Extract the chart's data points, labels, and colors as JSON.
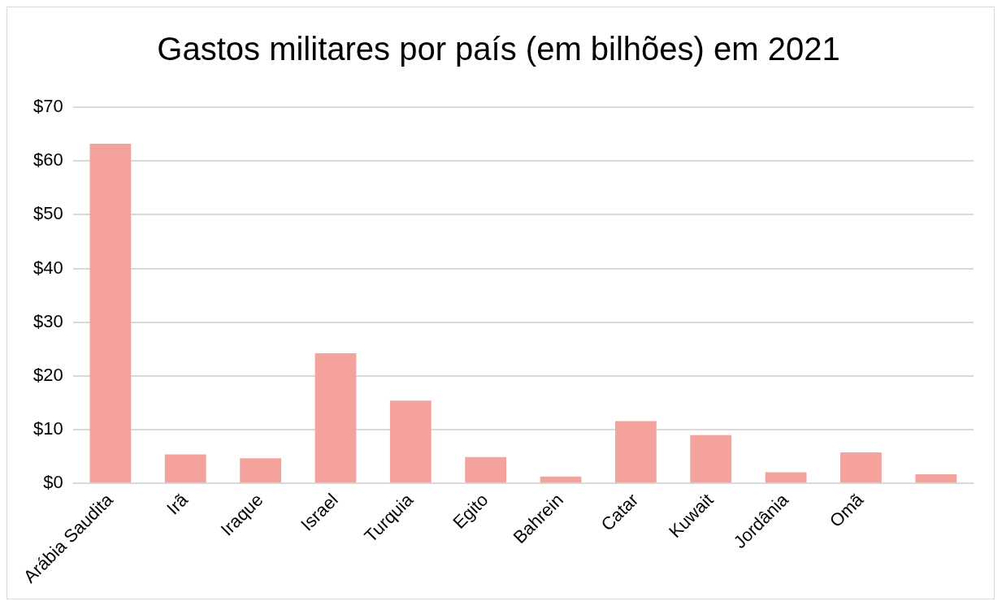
{
  "chart_data": {
    "type": "bar",
    "title": "Gastos militares por país (em bilhões) em 2021",
    "categories": [
      "Arábia Saudita",
      "Irã",
      "Iraque",
      "Israel",
      "Turquia",
      "Egito",
      "Bahrein",
      "Catar",
      "Kuwait",
      "Jordânia",
      "Omã",
      null
    ],
    "values": [
      63.2,
      5.4,
      4.7,
      24.2,
      15.4,
      4.9,
      1.3,
      11.6,
      9.0,
      2.1,
      5.8,
      1.7
    ],
    "color": "#f5a29c",
    "ylim": [
      0,
      70
    ],
    "yticks": [
      {
        "value": 0,
        "label": "$0"
      },
      {
        "value": 10,
        "label": "$10"
      },
      {
        "value": 20,
        "label": "$20"
      },
      {
        "value": 30,
        "label": "$30"
      },
      {
        "value": 40,
        "label": "$40"
      },
      {
        "value": 50,
        "label": "$50"
      },
      {
        "value": 60,
        "label": "$60"
      },
      {
        "value": 70,
        "label": "$70"
      }
    ],
    "grid": "y",
    "legend": false
  }
}
